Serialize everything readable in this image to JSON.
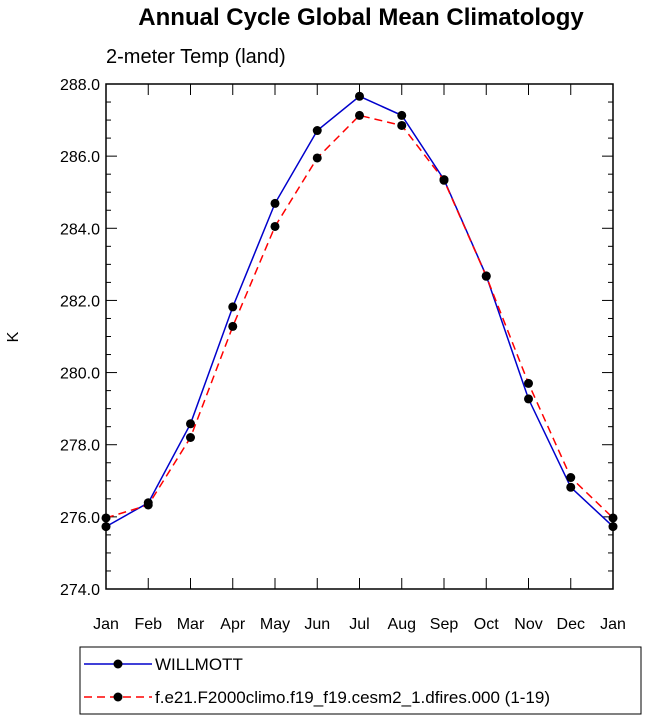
{
  "chart_data": {
    "type": "line",
    "title": "Annual Cycle Global Mean Climatology",
    "subtitle": "2-meter Temp (land)",
    "xlabel": "",
    "ylabel": "K",
    "categories": [
      "Jan",
      "Feb",
      "Mar",
      "Apr",
      "May",
      "Jun",
      "Jul",
      "Aug",
      "Sep",
      "Oct",
      "Nov",
      "Dec",
      "Jan"
    ],
    "ylim": [
      274.0,
      288.0
    ],
    "yticks": [
      "274.0",
      "276.0",
      "278.0",
      "280.0",
      "282.0",
      "284.0",
      "286.0",
      "288.0"
    ],
    "grid": false,
    "legend_position": "bottom",
    "series": [
      {
        "name": "WILLMOTT",
        "color": "#0000cc",
        "line_style": "solid",
        "values": [
          275.73,
          276.39,
          278.58,
          281.82,
          284.69,
          286.71,
          287.66,
          287.13,
          285.35,
          282.68,
          279.27,
          276.82,
          275.73
        ]
      },
      {
        "name": "f.e21.F2000climo.f19_f19.cesm2_1.dfires.000 (1-19)",
        "color": "#ff0000",
        "line_style": "dashed",
        "values": [
          275.97,
          276.33,
          278.2,
          281.28,
          284.05,
          285.95,
          287.13,
          286.85,
          285.33,
          282.67,
          279.7,
          277.09,
          275.97
        ]
      }
    ]
  }
}
